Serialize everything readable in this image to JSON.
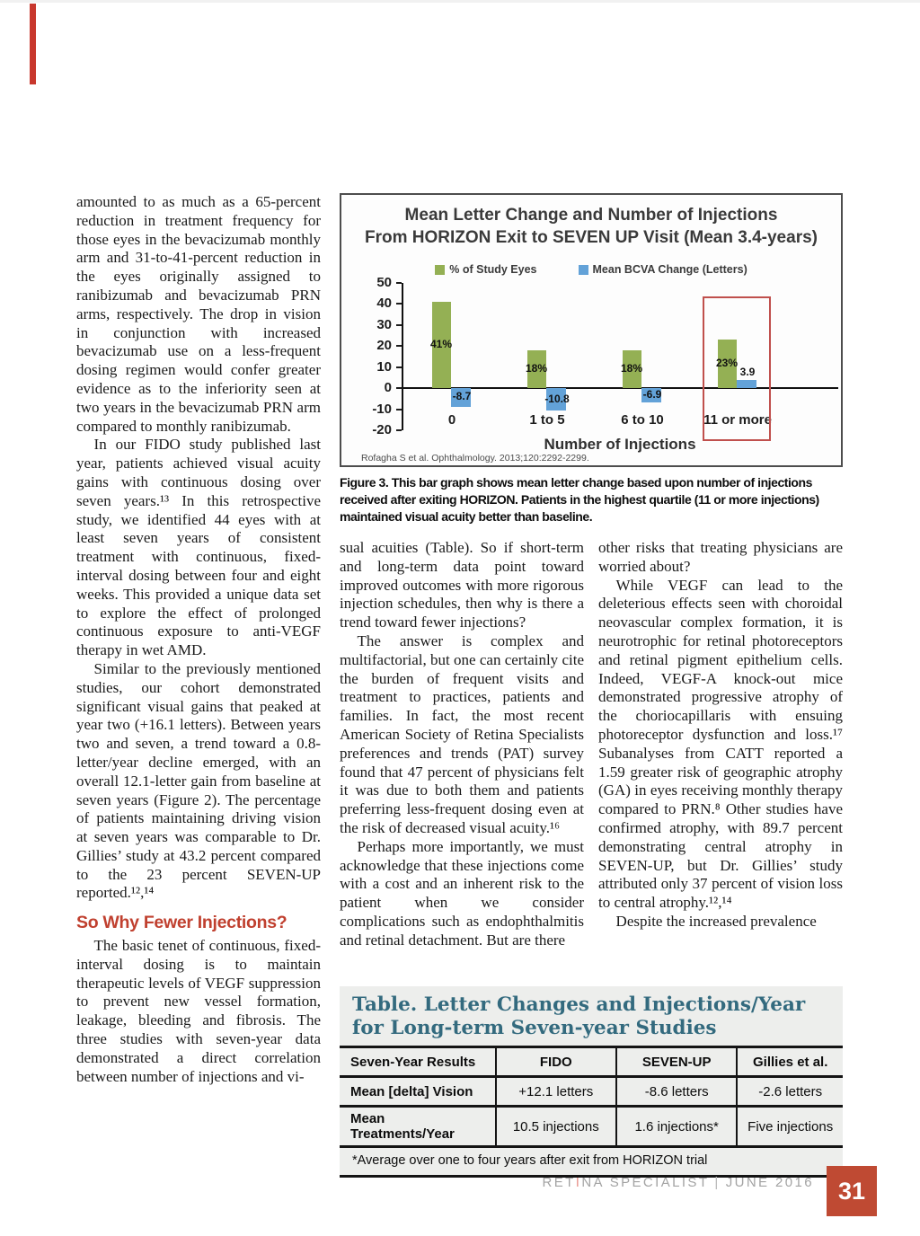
{
  "colors": {
    "accent_bar": "#c8372d",
    "heading": "#c0402f",
    "table_title": "#336a7e",
    "page_box": "#bf4a33",
    "brand_accent": "#e8928b",
    "chart_highlight": "#c0504d"
  },
  "article": {
    "col1": {
      "para1": "amounted to as much as a 65-percent reduction in treatment frequency for those eyes in the bevacizumab monthly arm and 31-to-41-percent reduction in the eyes originally assigned to ranibizumab and bevacizumab PRN arms, respectively. The drop in vision in conjunction with increased bevacizumab use on a less-frequent dosing regimen would confer greater evidence as to the inferiority seen at two years in the bevacizumab PRN arm compared to monthly ranibizumab.",
      "para2": "In our FIDO study published last year, patients achieved visual acuity gains with continuous dosing over seven years.¹³ In this retrospective study, we identified 44 eyes with at least seven years of consistent treatment with continuous, fixed-interval dosing between four and eight weeks. This provided a unique data set to explore the effect of prolonged continuous exposure to anti-VEGF therapy in wet AMD.",
      "para3": "Similar to the previously mentioned studies, our cohort demonstrated significant visual gains that peaked at year two (+16.1 letters). Between years two and seven, a trend toward a 0.8-letter/year decline emerged, with an overall 12.1-letter gain from baseline at seven years (Figure 2). The percentage of patients maintaining driving vision at seven years was comparable to Dr. Gillies’ study at 43.2 percent compared to the 23 percent SEVEN-UP reported.¹²,¹⁴",
      "heading": "So Why Fewer Injections?",
      "para4": "The basic tenet of continuous, fixed-interval dosing is to maintain therapeutic levels of VEGF suppression to prevent new vessel formation, leakage, bleeding and fibrosis. The three studies with seven-year data demonstrated a direct correlation between number of injections and vi-"
    },
    "col2": {
      "para1": "sual acuities (Table). So if short-term and long-term data point toward improved outcomes with more rigorous injection schedules, then why is there a trend toward fewer injections?",
      "para2": "The answer is complex and multifactorial, but one can certainly cite the burden of frequent visits and treatment to practices, patients and families. In fact, the most recent American Society of Retina Specialists preferences and trends (PAT) survey found that 47 percent of physicians felt it was due to both them and patients preferring less-frequent dosing even at the risk of decreased visual acuity.¹⁶",
      "para3": "Perhaps more importantly, we must acknowledge that these injections come with a cost and an inherent risk to the patient when we consider complications such as endophthalmitis and retinal detachment. But are there"
    },
    "col3": {
      "para1": "other risks that treating physicians are worried about?",
      "para2": "While VEGF can lead to the deleterious effects seen with choroidal neovascular complex formation, it is neurotrophic for retinal photoreceptors and retinal pigment epithelium cells. Indeed, VEGF-A knock-out mice demonstrated progressive atrophy of the choriocapillaris with ensuing photoreceptor dysfunction and loss.¹⁷ Subanalyses from CATT reported a 1.59 greater risk of geographic atrophy (GA) in eyes receiving monthly therapy compared to PRN.⁸ Other studies have confirmed atrophy, with 89.7 percent demonstrating central atrophy in SEVEN-UP, but Dr. Gillies’ study attributed only 37 percent of vision loss to central atrophy.¹²,¹⁴",
      "para3": "Despite the increased prevalence"
    }
  },
  "figure": {
    "caption": "Figure 3. This bar graph shows mean letter change based upon number of injections received after exiting HORIZON. Patients in the highest quartile (11 or more injections) maintained visual acuity better than baseline."
  },
  "chart_data": {
    "type": "bar",
    "title_line1": "Mean Letter Change and Number of Injections",
    "title_line2": "From HORIZON Exit to SEVEN UP Visit (Mean 3.4-years)",
    "categories": [
      "0",
      "1 to 5",
      "6 to 10",
      "11 or more"
    ],
    "series": [
      {
        "name": "% of Study Eyes",
        "color": "#94b054",
        "values": [
          41,
          18,
          18,
          23
        ],
        "labels": [
          "41%",
          "18%",
          "18%",
          "23%"
        ]
      },
      {
        "name": "Mean BCVA Change (Letters)",
        "color": "#63a2d8",
        "values": [
          -8.7,
          -10.8,
          -6.9,
          3.9
        ],
        "labels": [
          "-8.7",
          "-10.8",
          "-6.9",
          "3.9"
        ]
      }
    ],
    "xlabel": "Number of Injections",
    "ylim": [
      -20,
      50
    ],
    "yticks": [
      50,
      40,
      30,
      20,
      10,
      0,
      -10,
      -20
    ],
    "grid": false,
    "legend_position": "top",
    "highlight_category_index": 3,
    "source": "Rofagha S et al. Ophthalmology. 2013;120:2292-2299."
  },
  "table": {
    "title_line1": "Table. Letter Changes and Injections/Year",
    "title_line2": "for Long-term Seven-year Studies",
    "headers": [
      "Seven-Year Results",
      "FIDO",
      "SEVEN-UP",
      "Gillies et al."
    ],
    "rows": [
      [
        "Mean [delta] Vision",
        "+12.1 letters",
        "-8.6 letters",
        "-2.6 letters"
      ],
      [
        "Mean Treatments/Year",
        "10.5 injections",
        "1.6 injections*",
        "Five injections"
      ]
    ],
    "footnote": "*Average over one to four years after exit from HORIZON trial"
  },
  "footer": {
    "brand_pre": "RET",
    "brand_accent": "I",
    "brand_post": "NA SPECIALIST",
    "separator": "|",
    "issue": "JUNE 2016",
    "page_number": "31"
  }
}
